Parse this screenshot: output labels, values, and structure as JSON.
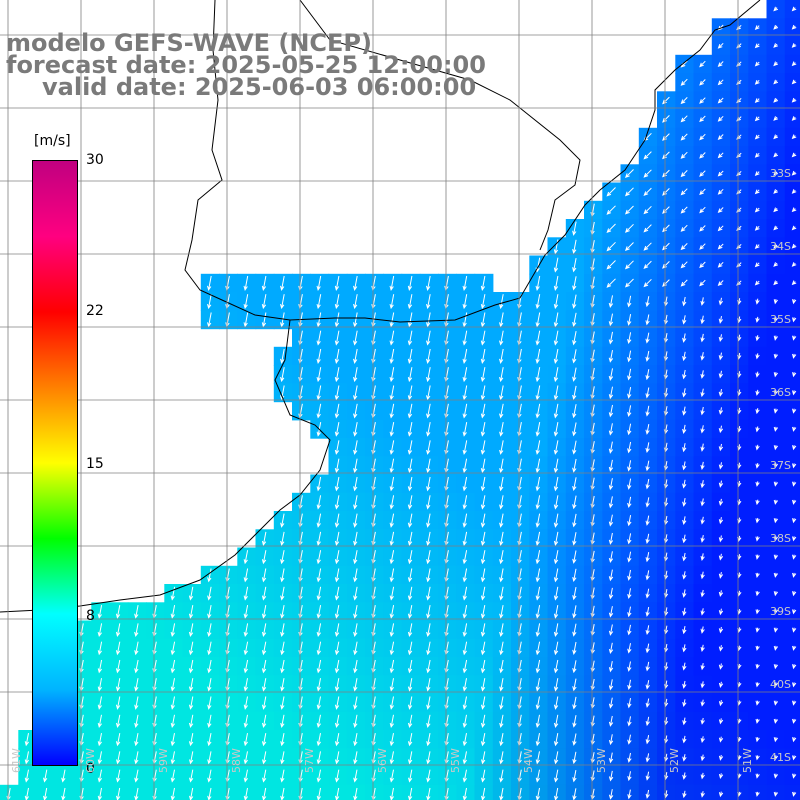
{
  "title": {
    "line1": "modelo GEFS-WAVE (NCEP)",
    "line2": "forecast date: 2025-05-25 12:00:00",
    "line3": "valid date: 2025-06-03 06:00:00"
  },
  "colorbar": {
    "unit": "[m/s]",
    "ticks": [
      "30",
      "22",
      "15",
      "8",
      "0"
    ],
    "min": 0,
    "max": 30,
    "stops": [
      "#0000ff",
      "#00b4ff",
      "#00ffff",
      "#00ff00",
      "#ffff00",
      "#ff8000",
      "#ff0000",
      "#ff0080",
      "#c00080"
    ]
  },
  "latitude_labels": [
    "33S",
    "34S",
    "35S",
    "36S",
    "37S",
    "38S",
    "39S",
    "40S",
    "41S"
  ],
  "longitude_labels": [
    "61W",
    "60W",
    "59W",
    "58W",
    "57W",
    "56W",
    "55W",
    "54W",
    "53W",
    "52W",
    "51W"
  ],
  "colors": {
    "land": "#ffffff",
    "coast": "#000000",
    "grid": "#808080",
    "arrows": "#ffffff",
    "title": "#7a7a7a"
  }
}
